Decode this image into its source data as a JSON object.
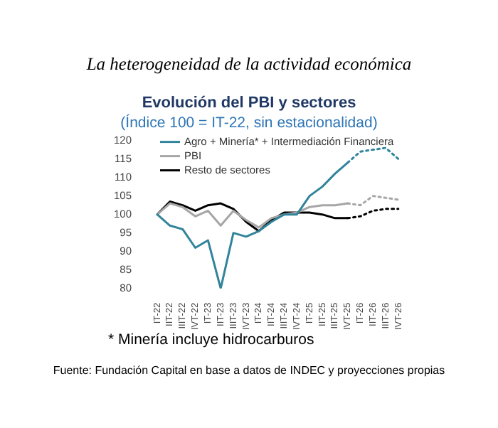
{
  "chart_data": {
    "type": "line",
    "title": "Evolución del PBI y sectores",
    "subtitle": "(Índice 100 = IT-22, sin estacionalidad)",
    "annotations": [
      "La heterogeneidad de la actividad económica",
      "* Minería incluye hidrocarburos",
      "Fuente: Fundación Capital en base a datos de INDEC y proyecciones propias"
    ],
    "categories": [
      "IT-22",
      "IIT-22",
      "IIIT-22",
      "IVT-22",
      "IT-23",
      "IIT-23",
      "IIIT-23",
      "IVT-23",
      "IT-24",
      "IIT-24",
      "IIIT-24",
      "IVT-24",
      "IT-25",
      "IIT-25",
      "IIIT-25",
      "IVT-25",
      "IT-26",
      "IIT-26",
      "IIIT-26",
      "IVT-26"
    ],
    "series": [
      {
        "name": "Agro + Minería* + Intermediación Financiera",
        "color": "#31849b",
        "values": [
          100,
          97,
          96,
          91,
          93,
          80,
          95,
          94,
          95.5,
          98,
          100,
          100,
          105,
          107.5,
          111,
          114,
          null,
          null,
          null,
          null
        ]
      },
      {
        "name": "PBI",
        "color": "#a6a6a6",
        "values": [
          100,
          103,
          102,
          99.5,
          101,
          97,
          101,
          98.5,
          96.5,
          99,
          100,
          100.5,
          102,
          102.5,
          102.5,
          103,
          null,
          null,
          null,
          null
        ]
      },
      {
        "name": "Resto de sectores",
        "color": "#000000",
        "values": [
          100,
          103.5,
          102.5,
          101,
          102.5,
          103,
          101.5,
          98,
          95.5,
          98.5,
          100.5,
          100.5,
          100.5,
          100,
          99,
          99,
          null,
          null,
          null,
          null
        ]
      },
      {
        "color": "#31849b",
        "line_style": "dotted",
        "values": [
          null,
          null,
          null,
          null,
          null,
          null,
          null,
          null,
          null,
          null,
          null,
          null,
          null,
          null,
          null,
          114,
          117,
          117.5,
          118,
          115
        ]
      },
      {
        "color": "#a6a6a6",
        "line_style": "dotted",
        "values": [
          null,
          null,
          null,
          null,
          null,
          null,
          null,
          null,
          null,
          null,
          null,
          null,
          null,
          null,
          null,
          103,
          102.5,
          105,
          104.5,
          104
        ]
      },
      {
        "color": "#000000",
        "line_style": "dotted",
        "values": [
          null,
          null,
          null,
          null,
          null,
          null,
          null,
          null,
          null,
          null,
          null,
          null,
          null,
          null,
          null,
          99,
          99.5,
          101,
          101.5,
          101.5
        ]
      }
    ],
    "ylim": [
      80,
      120
    ],
    "yticks": [
      80,
      85,
      90,
      95,
      100,
      105,
      110,
      115,
      120
    ],
    "grid": false,
    "legend": "top left",
    "marker": "none",
    "line_style": "solid"
  }
}
